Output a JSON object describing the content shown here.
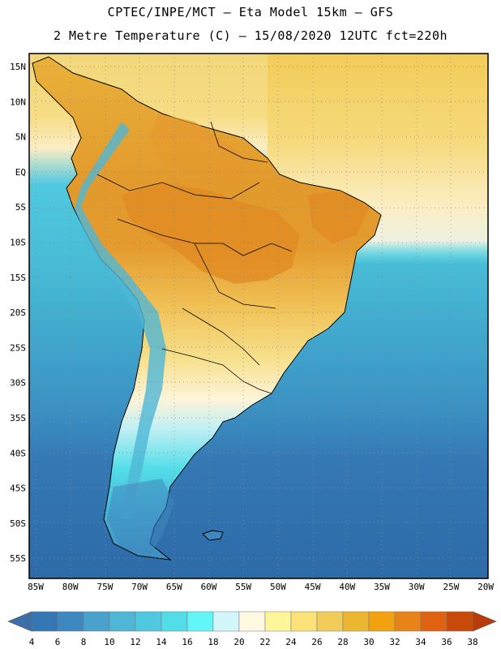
{
  "header": {
    "line1": "CPTEC/INPE/MCT  –   Eta Model 15km  –  GFS",
    "line2": "2 Metre Temperature (C)  –  15/08/2020 12UTC fct=220h"
  },
  "map": {
    "lat_labels": [
      "15N",
      "10N",
      "5N",
      "EQ",
      "5S",
      "10S",
      "15S",
      "20S",
      "25S",
      "30S",
      "35S",
      "40S",
      "45S",
      "50S",
      "55S"
    ],
    "lon_labels": [
      "85W",
      "80W",
      "75W",
      "70W",
      "65W",
      "60W",
      "55W",
      "50W",
      "45W",
      "40W",
      "35W",
      "30W",
      "25W",
      "20W"
    ],
    "lat_range": [
      18,
      -58
    ],
    "lon_range": [
      -85,
      -20
    ]
  },
  "colorbar": {
    "labels": [
      "4",
      "6",
      "8",
      "10",
      "12",
      "14",
      "16",
      "18",
      "20",
      "22",
      "24",
      "26",
      "28",
      "30",
      "32",
      "34",
      "36",
      "38"
    ],
    "under_color": "#3c6faa",
    "over_color": "#b83c0a",
    "colors": [
      "#3577b4",
      "#3e88c0",
      "#48a2cc",
      "#4fb6d6",
      "#50c8e0",
      "#52dde8",
      "#63f6f6",
      "#d2f6fa",
      "#fff8e2",
      "#fef69a",
      "#fae278",
      "#f2cc58",
      "#ebb630",
      "#f1a20e",
      "#e88318",
      "#de6212",
      "#c84a08"
    ]
  },
  "colors": {
    "ocean_north": "#f3d77a",
    "ocean_south_deep": "#2d6eab",
    "land_hot": "#e29a2c"
  }
}
